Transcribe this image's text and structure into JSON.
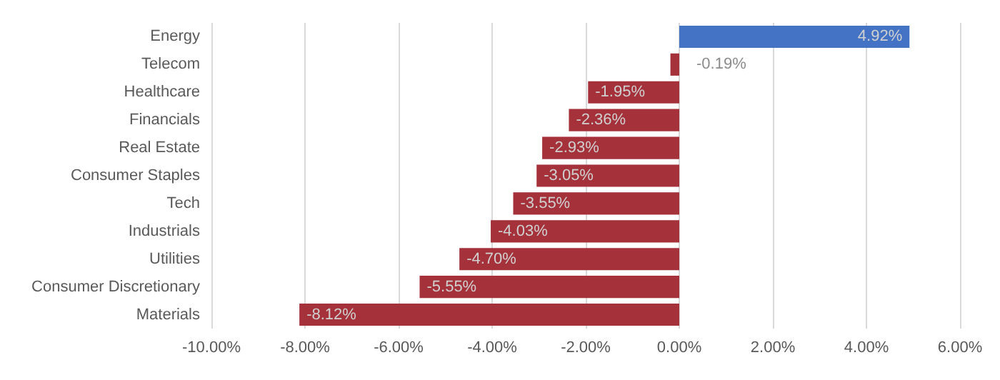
{
  "chart_data": {
    "type": "bar",
    "orientation": "horizontal",
    "categories": [
      "Energy",
      "Telecom",
      "Healthcare",
      "Financials",
      "Real Estate",
      "Consumer Staples",
      "Tech",
      "Industrials",
      "Utilities",
      "Consumer Discretionary",
      "Materials"
    ],
    "values": [
      4.92,
      -0.19,
      -1.95,
      -2.36,
      -2.93,
      -3.05,
      -3.55,
      -4.03,
      -4.7,
      -5.55,
      -8.12
    ],
    "value_labels": [
      "4.92%",
      "-0.19%",
      "-1.95%",
      "-2.36%",
      "-2.93%",
      "-3.05%",
      "-3.55%",
      "-4.03%",
      "-4.70%",
      "-5.55%",
      "-8.12%"
    ],
    "colors": [
      "#4472c4",
      "#a5323b",
      "#a5323b",
      "#a5323b",
      "#a5323b",
      "#a5323b",
      "#a5323b",
      "#a5323b",
      "#a5323b",
      "#a5323b",
      "#a5323b"
    ],
    "xlim": [
      -10,
      6
    ],
    "xticks": [
      {
        "value": -10,
        "label": "-10.00%"
      },
      {
        "value": -8,
        "label": "-8.00%"
      },
      {
        "value": -6,
        "label": "-6.00%"
      },
      {
        "value": -4,
        "label": "-4.00%"
      },
      {
        "value": -2,
        "label": "-2.00%"
      },
      {
        "value": 0,
        "label": "0.00%"
      },
      {
        "value": 2,
        "label": "2.00%"
      },
      {
        "value": 4,
        "label": "4.00%"
      },
      {
        "value": 6,
        "label": "6.00%"
      }
    ],
    "grid": "x"
  }
}
